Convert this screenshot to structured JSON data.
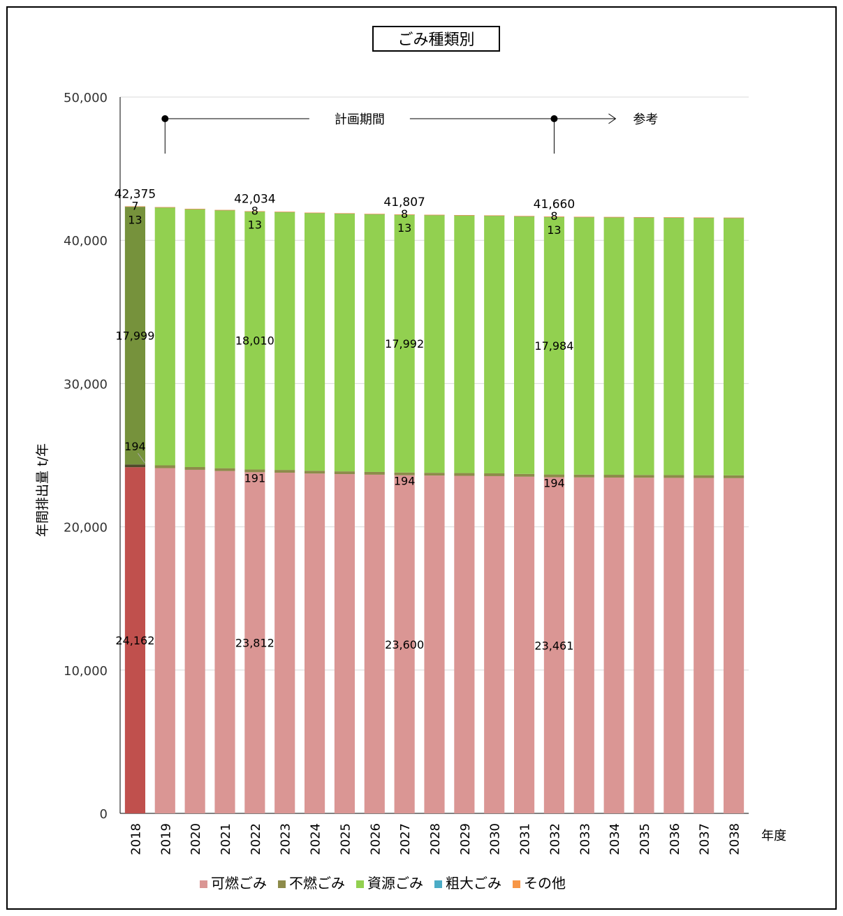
{
  "chart_data": {
    "type": "bar",
    "stacked": true,
    "title": "ごみ種類別",
    "ylabel": "年間排出量 t/年",
    "xlabel": "年度",
    "ylim": [
      0,
      50000
    ],
    "yticks": [
      0,
      10000,
      20000,
      30000,
      40000,
      50000
    ],
    "ytick_labels": [
      "0",
      "10,000",
      "20,000",
      "30,000",
      "40,000",
      "50,000"
    ],
    "grid": true,
    "legend_position": "bottom",
    "categories": [
      "2018",
      "2019",
      "2020",
      "2021",
      "2022",
      "2023",
      "2024",
      "2025",
      "2026",
      "2027",
      "2028",
      "2029",
      "2030",
      "2031",
      "2032",
      "2033",
      "2034",
      "2035",
      "2036",
      "2037",
      "2038"
    ],
    "series": [
      {
        "name": "可燃ごみ",
        "color": "#da9694",
        "highlight_color": "#c0504d",
        "values": [
          24162,
          24100,
          23980,
          23900,
          23812,
          23780,
          23720,
          23680,
          23640,
          23600,
          23580,
          23560,
          23540,
          23500,
          23461,
          23450,
          23440,
          23430,
          23420,
          23410,
          23400
        ]
      },
      {
        "name": "不燃ごみ",
        "color": "#8d8b4a",
        "highlight_color": "#4f4b2a",
        "values": [
          194,
          193,
          192,
          192,
          191,
          192,
          192,
          193,
          193,
          194,
          194,
          194,
          194,
          194,
          194,
          194,
          194,
          194,
          194,
          194,
          194
        ]
      },
      {
        "name": "資源ごみ",
        "color": "#92d050",
        "highlight_color": "#76923c",
        "values": [
          17999,
          18005,
          18008,
          18009,
          18010,
          18005,
          18002,
          17999,
          17995,
          17992,
          17990,
          17989,
          17988,
          17986,
          17984,
          17980,
          17978,
          17976,
          17974,
          17972,
          17970
        ]
      },
      {
        "name": "粗大ごみ",
        "color": "#4bacc6",
        "highlight_color": "#4bacc6",
        "values": [
          13,
          13,
          13,
          13,
          13,
          13,
          13,
          13,
          13,
          13,
          13,
          13,
          13,
          13,
          13,
          13,
          13,
          13,
          13,
          13,
          13
        ]
      },
      {
        "name": "その他",
        "color": "#f79646",
        "highlight_color": "#f79646",
        "values": [
          7,
          8,
          8,
          8,
          8,
          8,
          8,
          8,
          8,
          8,
          8,
          8,
          8,
          8,
          8,
          8,
          8,
          8,
          8,
          8,
          8
        ]
      }
    ],
    "totals": [
      42375,
      42319,
      42201,
      42122,
      42034,
      41998,
      41935,
      41893,
      41849,
      41807,
      41784,
      41764,
      41743,
      41701,
      41660,
      41645,
      41633,
      41621,
      41609,
      41597,
      41585
    ],
    "labeled_category_indices": [
      0,
      4,
      9,
      14
    ],
    "labels": {
      "0": {
        "total": "42,375",
        "sonota": "7",
        "sodai": "13",
        "shigen": "17,999",
        "funen": "194",
        "kanen": "24,162"
      },
      "4": {
        "total": "42,034",
        "sonota": "8",
        "sodai": "13",
        "shigen": "18,010",
        "funen": "191",
        "kanen": "23,812"
      },
      "9": {
        "total": "41,807",
        "sonota": "8",
        "sodai": "13",
        "shigen": "17,992",
        "funen": "194",
        "kanen": "23,600"
      },
      "14": {
        "total": "41,660",
        "sonota": "8",
        "sodai": "13",
        "shigen": "17,984",
        "funen": "194",
        "kanen": "23,461"
      }
    },
    "annotations": {
      "plan_period": "計画期間",
      "reference": "参考",
      "plan_start_category": "2019",
      "plan_end_category": "2032"
    }
  }
}
